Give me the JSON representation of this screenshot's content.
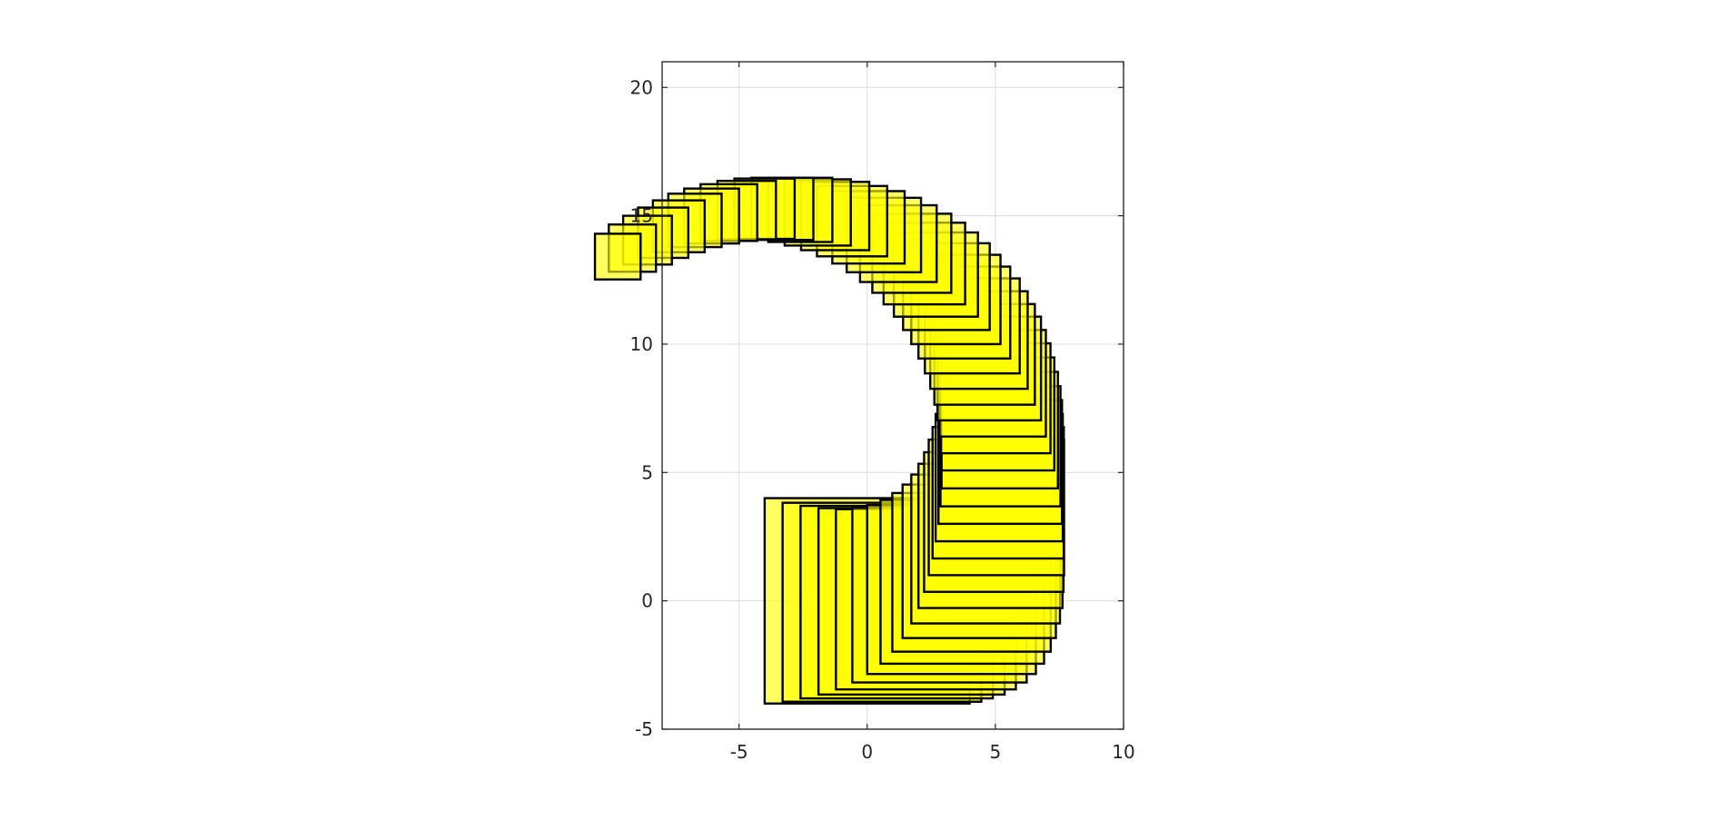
{
  "chart_data": {
    "type": "scatter",
    "mark": "square",
    "title": "",
    "xlabel": "",
    "ylabel": "",
    "xlim": [
      -8,
      10
    ],
    "ylim": [
      -5,
      21
    ],
    "xticks": [
      -5,
      0,
      5,
      10
    ],
    "yticks": [
      -5,
      0,
      5,
      10,
      15,
      20
    ],
    "xtick_labels": [
      "-5",
      "0",
      "5",
      "10"
    ],
    "ytick_labels": [
      "-5",
      "0",
      "5",
      "10",
      "15",
      "20"
    ],
    "grid": true,
    "aspect": "equal",
    "fill_color": "#ffff00",
    "edge_color": "#000000",
    "fill_alpha": 0.62,
    "squares": [
      {
        "x": 0.0,
        "y": 0.0,
        "side": 8.0
      },
      {
        "x": 0.7,
        "y": 0.07,
        "side": 7.75
      },
      {
        "x": 1.4,
        "y": 0.2,
        "side": 7.5
      },
      {
        "x": 2.1,
        "y": 0.35,
        "side": 7.26
      },
      {
        "x": 2.78,
        "y": 0.55,
        "side": 7.02
      },
      {
        "x": 3.42,
        "y": 0.82,
        "side": 6.8
      },
      {
        "x": 4.0,
        "y": 1.15,
        "side": 6.58
      },
      {
        "x": 4.52,
        "y": 1.55,
        "side": 6.38
      },
      {
        "x": 4.98,
        "y": 2.02,
        "side": 6.18
      },
      {
        "x": 5.38,
        "y": 2.55,
        "side": 5.98
      },
      {
        "x": 5.72,
        "y": 3.12,
        "side": 5.8
      },
      {
        "x": 6.0,
        "y": 3.72,
        "side": 5.62
      },
      {
        "x": 6.22,
        "y": 4.35,
        "side": 5.44
      },
      {
        "x": 6.4,
        "y": 5.0,
        "side": 5.28
      },
      {
        "x": 6.55,
        "y": 5.65,
        "side": 5.12
      },
      {
        "x": 6.67,
        "y": 6.32,
        "side": 4.96
      },
      {
        "x": 6.78,
        "y": 7.0,
        "side": 4.82
      },
      {
        "x": 6.86,
        "y": 7.68,
        "side": 4.68
      },
      {
        "x": 6.9,
        "y": 8.38,
        "side": 4.54
      },
      {
        "x": 6.9,
        "y": 9.08,
        "side": 4.4
      },
      {
        "x": 6.87,
        "y": 9.75,
        "side": 4.28
      },
      {
        "x": 6.82,
        "y": 10.4,
        "side": 4.15
      },
      {
        "x": 6.74,
        "y": 11.03,
        "side": 4.04
      },
      {
        "x": 6.62,
        "y": 11.64,
        "side": 3.92
      },
      {
        "x": 6.46,
        "y": 12.26,
        "side": 3.8
      },
      {
        "x": 6.25,
        "y": 12.86,
        "side": 3.7
      },
      {
        "x": 6.0,
        "y": 13.44,
        "side": 3.58
      },
      {
        "x": 5.72,
        "y": 14.0,
        "side": 3.48
      },
      {
        "x": 5.4,
        "y": 14.55,
        "side": 3.38
      },
      {
        "x": 5.04,
        "y": 15.07,
        "side": 3.28
      },
      {
        "x": 4.64,
        "y": 15.55,
        "side": 3.18
      },
      {
        "x": 4.2,
        "y": 16.0,
        "side": 3.08
      },
      {
        "x": 3.72,
        "y": 16.42,
        "side": 2.99
      },
      {
        "x": 3.2,
        "y": 16.8,
        "side": 2.9
      },
      {
        "x": 2.64,
        "y": 17.14,
        "side": 2.82
      },
      {
        "x": 2.04,
        "y": 17.42,
        "side": 2.74
      },
      {
        "x": 1.42,
        "y": 17.66,
        "side": 2.66
      },
      {
        "x": 0.78,
        "y": 17.84,
        "side": 2.58
      },
      {
        "x": 0.14,
        "y": 17.98,
        "side": 2.5
      },
      {
        "x": -0.52,
        "y": 18.06,
        "side": 2.42
      },
      {
        "x": -1.18,
        "y": 18.1,
        "side": 2.35
      },
      {
        "x": -1.84,
        "y": 18.08,
        "side": 2.28
      },
      {
        "x": -2.5,
        "y": 18.02,
        "side": 2.21
      },
      {
        "x": -3.14,
        "y": 17.92,
        "side": 2.14
      },
      {
        "x": -3.76,
        "y": 17.78,
        "side": 2.08
      },
      {
        "x": -4.36,
        "y": 17.58,
        "side": 2.02
      },
      {
        "x": -4.94,
        "y": 17.36,
        "side": 1.96
      },
      {
        "x": -5.52,
        "y": 17.1,
        "side": 1.9
      },
      {
        "x": -6.08,
        "y": 16.82,
        "side": 1.84
      },
      {
        "x": -6.62,
        "y": 16.52,
        "side": 1.78
      }
    ],
    "square_anchor": "lower-left corner is (x - 4, y - 4)"
  }
}
